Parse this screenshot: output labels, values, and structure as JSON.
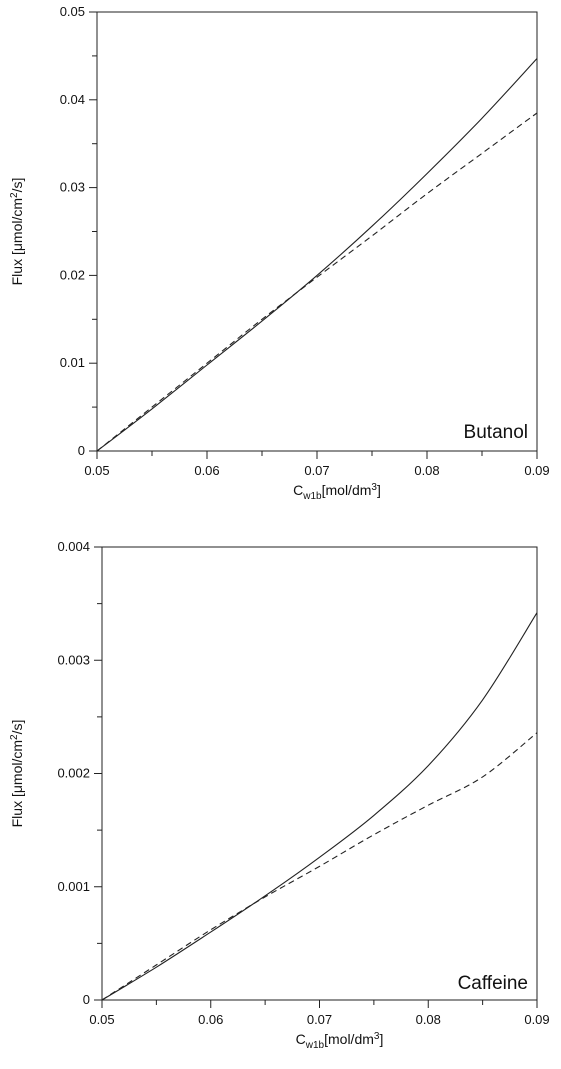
{
  "chart_data": [
    {
      "type": "line",
      "annotation": "Butanol",
      "xlabel_main": "C",
      "xlabel_sub": "w1b",
      "xlabel_rest": "[mol/dm",
      "xlabel_sup": "3",
      "xlabel_close": "]",
      "ylabel_pre": "Flux [μmol/cm",
      "ylabel_sup": "2",
      "ylabel_post": "/s]",
      "xlim": [
        0.05,
        0.09
      ],
      "ylim": [
        0,
        0.05
      ],
      "x_ticks": [
        0.05,
        0.06,
        0.07,
        0.08,
        0.09
      ],
      "x_tick_labels": [
        "0.05",
        "0.06",
        "0.07",
        "0.08",
        "0.09"
      ],
      "y_ticks": [
        0,
        0.01,
        0.02,
        0.03,
        0.04,
        0.05
      ],
      "y_tick_labels": [
        "0",
        "0.01",
        "0.02",
        "0.03",
        "0.04",
        "0.05"
      ],
      "grid": false,
      "series": [
        {
          "style": "solid",
          "x": [
            0.05,
            0.055,
            0.06,
            0.065,
            0.07,
            0.075,
            0.08,
            0.085,
            0.09
          ],
          "y": [
            0,
            0.0048,
            0.0098,
            0.0148,
            0.02,
            0.0256,
            0.0316,
            0.0379,
            0.0447
          ]
        },
        {
          "style": "dashed",
          "x": [
            0.05,
            0.055,
            0.06,
            0.065,
            0.07,
            0.075,
            0.08,
            0.085,
            0.09
          ],
          "y": [
            0,
            0.005,
            0.01,
            0.015,
            0.0198,
            0.0245,
            0.0293,
            0.0339,
            0.0385
          ]
        }
      ]
    },
    {
      "type": "line",
      "annotation": "Caffeine",
      "xlabel_main": "C",
      "xlabel_sub": "w1b",
      "xlabel_rest": "[mol/dm",
      "xlabel_sup": "3",
      "xlabel_close": "]",
      "ylabel_pre": "Flux [μmol/cm",
      "ylabel_sup": "2",
      "ylabel_post": "/s]",
      "xlim": [
        0.05,
        0.09
      ],
      "ylim": [
        0,
        0.004
      ],
      "x_ticks": [
        0.05,
        0.06,
        0.07,
        0.08,
        0.09
      ],
      "x_tick_labels": [
        "0.05",
        "0.06",
        "0.07",
        "0.08",
        "0.09"
      ],
      "y_ticks": [
        0,
        0.001,
        0.002,
        0.003,
        0.004
      ],
      "y_tick_labels": [
        "0",
        "0.001",
        "0.002",
        "0.003",
        "0.004"
      ],
      "grid": false,
      "series": [
        {
          "style": "solid",
          "x": [
            0.05,
            0.055,
            0.06,
            0.065,
            0.07,
            0.075,
            0.08,
            0.085,
            0.09
          ],
          "y": [
            0,
            0.00029,
            0.0006,
            0.00092,
            0.00126,
            0.00163,
            0.00207,
            0.00265,
            0.00342
          ]
        },
        {
          "style": "dashed",
          "x": [
            0.05,
            0.055,
            0.06,
            0.065,
            0.07,
            0.075,
            0.08,
            0.085,
            0.09
          ],
          "y": [
            0,
            0.00031,
            0.00062,
            0.00091,
            0.00118,
            0.00146,
            0.00172,
            0.00197,
            0.00236
          ]
        }
      ]
    }
  ]
}
